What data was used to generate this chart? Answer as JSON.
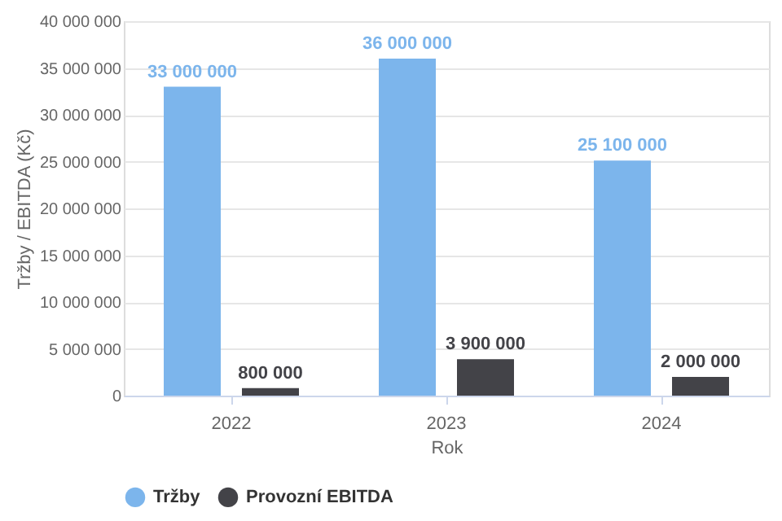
{
  "chart_data": {
    "type": "bar",
    "xlabel": "Rok",
    "ylabel": "Tržby / EBITDA (Kč)",
    "categories": [
      "2022",
      "2023",
      "2024"
    ],
    "series": [
      {
        "name": "Tržby",
        "color": "#7cb5ec",
        "values": [
          33000000,
          36000000,
          25100000
        ],
        "value_labels": [
          "33 000 000",
          "36 000 000",
          "25 100 000"
        ]
      },
      {
        "name": "Provozní EBITDA",
        "color": "#434348",
        "values": [
          800000,
          3900000,
          2000000
        ],
        "value_labels": [
          "800 000",
          "3 900 000",
          "2 000 000"
        ]
      }
    ],
    "ylim": [
      0,
      40000000
    ],
    "yticks": [
      {
        "value": 0,
        "label": "0"
      },
      {
        "value": 5000000,
        "label": "5 000 000"
      },
      {
        "value": 10000000,
        "label": "10 000 000"
      },
      {
        "value": 15000000,
        "label": "15 000 000"
      },
      {
        "value": 20000000,
        "label": "20 000 000"
      },
      {
        "value": 25000000,
        "label": "25 000 000"
      },
      {
        "value": 30000000,
        "label": "30 000 000"
      },
      {
        "value": 35000000,
        "label": "35 000 000"
      },
      {
        "value": 40000000,
        "label": "40 000 000"
      }
    ],
    "grid": "y",
    "legend": "bottom"
  }
}
